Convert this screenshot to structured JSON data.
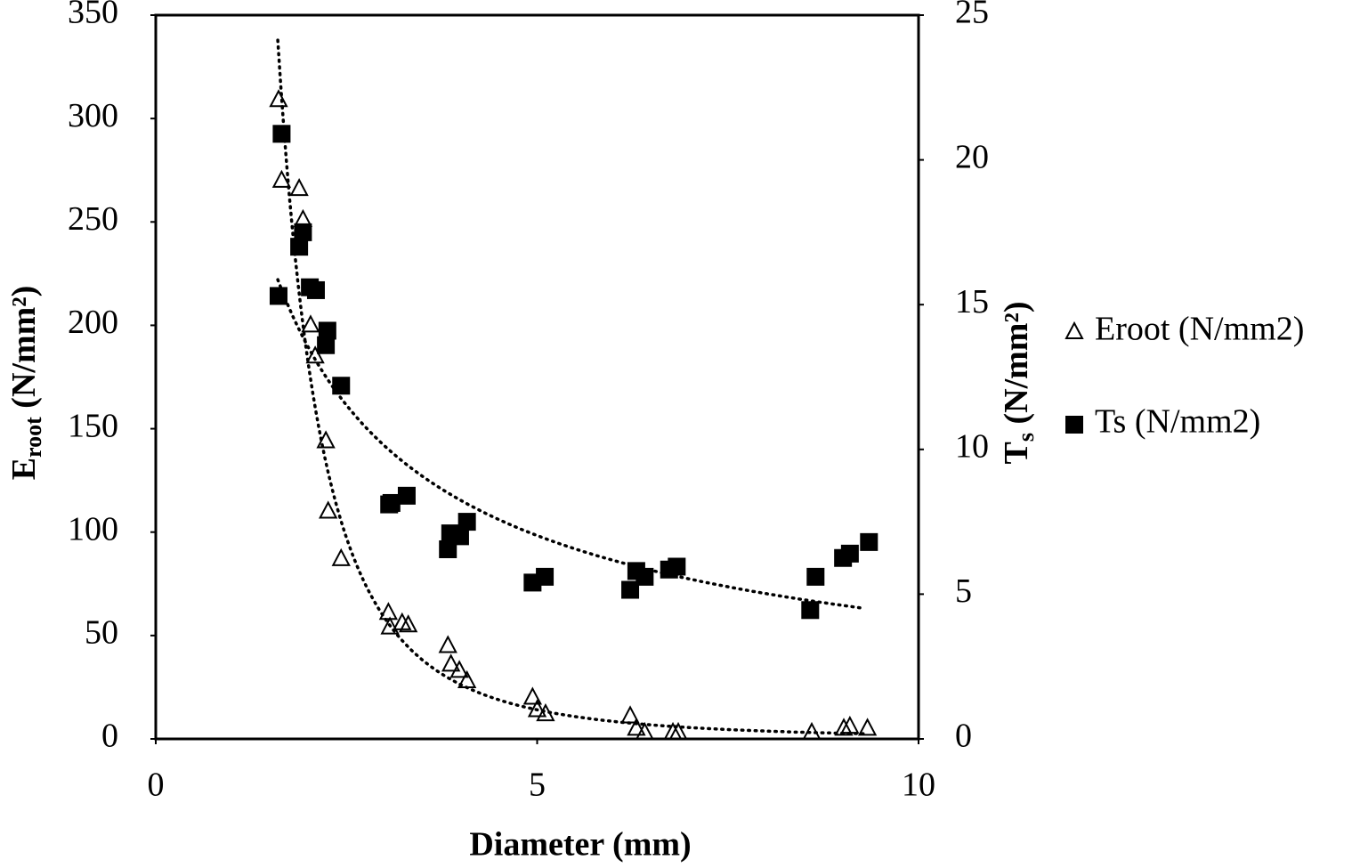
{
  "chart_data": {
    "type": "scatter",
    "x_label": "Diameter (mm)",
    "y_label": {
      "main": "E",
      "subscript": "root",
      "unit": " (N/mm²)"
    },
    "y2_label": {
      "main": "T",
      "subscript": "s",
      "unit": " (N/mm²)"
    },
    "xlim": [
      0,
      10
    ],
    "xticks": [
      0,
      5,
      10
    ],
    "ylim": [
      0,
      350
    ],
    "yticks": [
      0,
      50,
      100,
      150,
      200,
      250,
      300,
      350
    ],
    "y2lim": [
      0,
      25
    ],
    "y2ticks": [
      0,
      5,
      10,
      15,
      20,
      25
    ],
    "legend": "right",
    "series": [
      {
        "name": "Eroot (N/mm2)",
        "marker": "triangle",
        "color": "#000000",
        "x": [
          1.61,
          1.65,
          1.88,
          1.93,
          2.03,
          2.09,
          2.23,
          2.26,
          2.43,
          3.05,
          3.07,
          3.23,
          3.31,
          3.83,
          3.87,
          3.98,
          4.08,
          4.94,
          5.0,
          5.11,
          6.22,
          6.3,
          6.41,
          6.78,
          6.85,
          8.6,
          9.02,
          9.1,
          9.33
        ],
        "values": [
          309,
          270,
          266,
          251,
          200,
          185,
          144,
          110,
          87,
          61,
          54,
          56,
          55,
          45,
          36,
          33,
          28,
          20,
          14,
          12,
          11,
          5,
          3,
          3,
          3,
          3,
          5,
          6,
          5
        ],
        "trendline": {
          "type": "power",
          "coefficient": 1254,
          "exponent": -2.79,
          "xrange": [
            1.6,
            9.3
          ]
        }
      },
      {
        "name": "Ts (N/mm2)",
        "marker": "square",
        "color": "#000000",
        "axis": "y2",
        "x": [
          1.61,
          1.65,
          1.88,
          1.93,
          2.02,
          2.1,
          2.25,
          2.23,
          2.43,
          3.06,
          3.09,
          3.29,
          3.83,
          3.86,
          3.99,
          4.08,
          4.94,
          5.1,
          6.22,
          6.3,
          6.41,
          6.73,
          6.83,
          8.58,
          8.65,
          9.01,
          9.1,
          9.35
        ],
        "values": [
          15.3,
          20.9,
          17.0,
          17.5,
          15.6,
          15.5,
          14.1,
          13.6,
          12.2,
          8.1,
          8.15,
          8.4,
          6.55,
          7.1,
          7.0,
          7.5,
          5.4,
          5.6,
          5.15,
          5.8,
          5.6,
          5.85,
          5.95,
          4.45,
          5.6,
          6.25,
          6.4,
          6.8
        ],
        "trendline": {
          "type": "power",
          "coefficient": 22.2,
          "exponent": -0.715,
          "xrange": [
            1.6,
            9.3
          ]
        }
      }
    ]
  }
}
